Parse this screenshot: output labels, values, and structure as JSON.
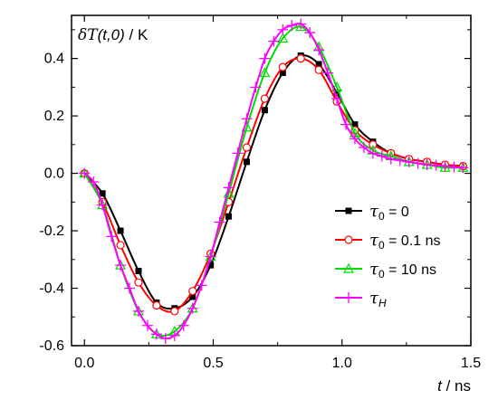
{
  "chart_data": {
    "type": "line",
    "xlim": [
      -0.05,
      1.5
    ],
    "ylim": [
      -0.6,
      0.55
    ],
    "x_ticks": [
      "0.0",
      "0.5",
      "1.0",
      "1.5"
    ],
    "y_ticks": [
      "0.4",
      "0.2",
      "0.0",
      "-0.2",
      "-0.4",
      "-0.6"
    ],
    "xlabel": {
      "var": "t",
      "unit": " / ns"
    },
    "ylabel": {
      "var": "δT",
      "args": "(t,0)",
      "unit": " / K"
    },
    "grid": false,
    "legend_position": "right",
    "series": [
      {
        "name": "τ0 = 0",
        "color": "#000000",
        "marker": "filled-square",
        "legend_label": {
          "base": "τ",
          "sub": "0",
          "rest": " = 0"
        },
        "x": [
          0.0,
          0.07,
          0.14,
          0.21,
          0.28,
          0.35,
          0.42,
          0.49,
          0.56,
          0.63,
          0.7,
          0.77,
          0.84,
          0.91,
          0.98,
          1.05,
          1.12,
          1.19,
          1.26,
          1.33,
          1.4,
          1.47
        ],
        "y": [
          0.0,
          -0.07,
          -0.2,
          -0.34,
          -0.45,
          -0.47,
          -0.43,
          -0.32,
          -0.15,
          0.04,
          0.22,
          0.35,
          0.41,
          0.38,
          0.28,
          0.17,
          0.11,
          0.07,
          0.05,
          0.04,
          0.03,
          0.025
        ]
      },
      {
        "name": "τ0 = 0.1 ns",
        "color": "#ff0000",
        "marker": "open-circle",
        "legend_label": {
          "base": "τ",
          "sub": "0",
          "rest": " = 0.1 ns"
        },
        "x": [
          0.0,
          0.07,
          0.14,
          0.21,
          0.28,
          0.35,
          0.42,
          0.49,
          0.56,
          0.63,
          0.7,
          0.77,
          0.84,
          0.91,
          0.98,
          1.05,
          1.12,
          1.19,
          1.26,
          1.33,
          1.4,
          1.47
        ],
        "y": [
          0.0,
          -0.1,
          -0.25,
          -0.38,
          -0.46,
          -0.48,
          -0.41,
          -0.28,
          -0.1,
          0.09,
          0.26,
          0.37,
          0.4,
          0.36,
          0.25,
          0.15,
          0.1,
          0.07,
          0.05,
          0.04,
          0.03,
          0.025
        ]
      },
      {
        "name": "τ0 = 10 ns",
        "color": "#00dd00",
        "marker": "open-triangle",
        "legend_label": {
          "base": "τ",
          "sub": "0",
          "rest": " = 10 ns"
        },
        "x": [
          0.0,
          0.07,
          0.14,
          0.21,
          0.28,
          0.35,
          0.42,
          0.49,
          0.56,
          0.63,
          0.7,
          0.77,
          0.84,
          0.91,
          0.98,
          1.05,
          1.12,
          1.19,
          1.26,
          1.33,
          1.4,
          1.47
        ],
        "y": [
          0.0,
          -0.11,
          -0.32,
          -0.48,
          -0.56,
          -0.55,
          -0.47,
          -0.29,
          -0.07,
          0.16,
          0.35,
          0.47,
          0.51,
          0.44,
          0.3,
          0.14,
          0.08,
          0.06,
          0.04,
          0.03,
          0.02,
          0.02
        ]
      },
      {
        "name": "τH",
        "color": "#ff00ff",
        "marker": "plus",
        "legend_label": {
          "base": "τ",
          "sub": "H",
          "rest": ""
        },
        "x": [
          0.0,
          0.035,
          0.07,
          0.105,
          0.14,
          0.175,
          0.21,
          0.245,
          0.28,
          0.315,
          0.35,
          0.385,
          0.42,
          0.455,
          0.49,
          0.525,
          0.56,
          0.595,
          0.63,
          0.665,
          0.7,
          0.735,
          0.77,
          0.805,
          0.84,
          0.875,
          0.91,
          0.945,
          0.98,
          1.015,
          1.05,
          1.085,
          1.12,
          1.155,
          1.19,
          1.225,
          1.26,
          1.295,
          1.33,
          1.365,
          1.4,
          1.435,
          1.47
        ],
        "y": [
          0.0,
          -0.03,
          -0.11,
          -0.22,
          -0.32,
          -0.4,
          -0.48,
          -0.53,
          -0.56,
          -0.575,
          -0.565,
          -0.53,
          -0.47,
          -0.39,
          -0.29,
          -0.17,
          -0.05,
          0.07,
          0.19,
          0.3,
          0.4,
          0.46,
          0.5,
          0.515,
          0.52,
          0.49,
          0.43,
          0.35,
          0.26,
          0.17,
          0.12,
          0.09,
          0.07,
          0.06,
          0.05,
          0.045,
          0.04,
          0.035,
          0.03,
          0.028,
          0.025,
          0.022,
          0.02
        ]
      }
    ]
  }
}
